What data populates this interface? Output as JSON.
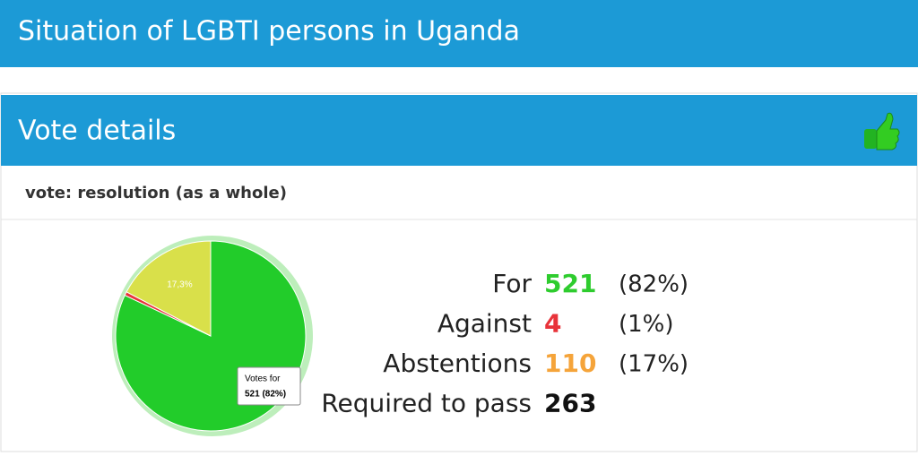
{
  "header": {
    "title": "Situation of LGBTI persons in Uganda"
  },
  "panel": {
    "title": "Vote details",
    "subtitle": "vote: resolution (as a whole)"
  },
  "chart_data": {
    "type": "pie",
    "categories": [
      "For",
      "Against",
      "Abstentions"
    ],
    "values": [
      82.05,
      0.63,
      17.32
    ],
    "value_labels": [
      null,
      null,
      "17,3%"
    ],
    "colors": [
      "#22cc2a",
      "#e8333a",
      "#d9e04a"
    ],
    "tooltip": {
      "title": "Votes for",
      "text": "521 (82%)"
    }
  },
  "table": {
    "rows": [
      [
        "For",
        "521",
        "(82%)"
      ],
      [
        "Against",
        "4",
        "(1%)"
      ],
      [
        "Abstentions",
        "110",
        "(17%)"
      ],
      [
        "Required to pass",
        "263"
      ]
    ]
  }
}
